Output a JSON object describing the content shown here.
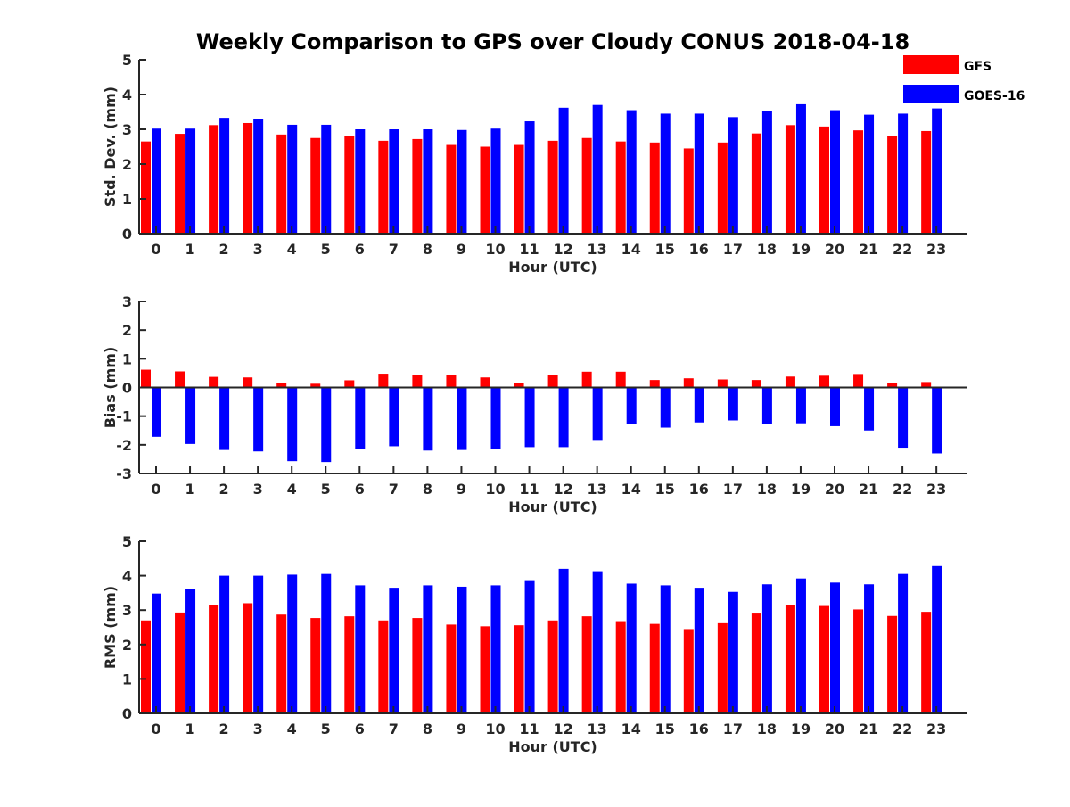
{
  "title": "Weekly Comparison to GPS over Cloudy CONUS 2018-04-18",
  "legend": [
    {
      "name": "GFS",
      "color": "#ff0000"
    },
    {
      "name": "GOES-16",
      "color": "#0000ff"
    }
  ],
  "chart_data": [
    {
      "type": "bar",
      "xlabel": "Hour (UTC)",
      "ylabel": "Std. Dev. (mm)",
      "ylim": [
        0,
        5
      ],
      "yticks": [
        0,
        1,
        2,
        3,
        4,
        5
      ],
      "categories": [
        "0",
        "1",
        "2",
        "3",
        "4",
        "5",
        "6",
        "7",
        "8",
        "9",
        "10",
        "11",
        "12",
        "13",
        "14",
        "15",
        "16",
        "17",
        "18",
        "19",
        "20",
        "21",
        "22",
        "23"
      ],
      "series": [
        {
          "name": "GFS",
          "color": "#ff0000",
          "values": [
            2.65,
            2.87,
            3.12,
            3.18,
            2.85,
            2.75,
            2.8,
            2.67,
            2.72,
            2.55,
            2.5,
            2.55,
            2.67,
            2.75,
            2.65,
            2.62,
            2.45,
            2.62,
            2.88,
            3.12,
            3.08,
            2.97,
            2.82,
            2.95
          ]
        },
        {
          "name": "GOES-16",
          "color": "#0000ff",
          "values": [
            3.02,
            3.02,
            3.33,
            3.3,
            3.13,
            3.13,
            3.0,
            3.0,
            3.0,
            2.98,
            3.02,
            3.23,
            3.62,
            3.7,
            3.55,
            3.45,
            3.45,
            3.35,
            3.52,
            3.72,
            3.55,
            3.42,
            3.45,
            3.6
          ]
        }
      ]
    },
    {
      "type": "bar",
      "xlabel": "Hour (UTC)",
      "ylabel": "Bias (mm)",
      "ylim": [
        -3,
        3
      ],
      "yticks": [
        -3,
        -2,
        -1,
        0,
        1,
        2,
        3
      ],
      "categories": [
        "0",
        "1",
        "2",
        "3",
        "4",
        "5",
        "6",
        "7",
        "8",
        "9",
        "10",
        "11",
        "12",
        "13",
        "14",
        "15",
        "16",
        "17",
        "18",
        "19",
        "20",
        "21",
        "22",
        "23"
      ],
      "series": [
        {
          "name": "GFS",
          "color": "#ff0000",
          "values": [
            0.62,
            0.56,
            0.37,
            0.35,
            0.17,
            0.13,
            0.25,
            0.48,
            0.42,
            0.45,
            0.35,
            0.17,
            0.45,
            0.55,
            0.55,
            0.26,
            0.32,
            0.28,
            0.26,
            0.38,
            0.41,
            0.47,
            0.17,
            0.19
          ]
        },
        {
          "name": "GOES-16",
          "color": "#0000ff",
          "values": [
            -1.72,
            -1.97,
            -2.18,
            -2.23,
            -2.57,
            -2.6,
            -2.15,
            -2.05,
            -2.2,
            -2.18,
            -2.15,
            -2.08,
            -2.08,
            -1.83,
            -1.27,
            -1.4,
            -1.22,
            -1.15,
            -1.27,
            -1.25,
            -1.35,
            -1.5,
            -2.1,
            -2.3
          ]
        }
      ]
    },
    {
      "type": "bar",
      "xlabel": "Hour (UTC)",
      "ylabel": "RMS (mm)",
      "ylim": [
        0,
        5
      ],
      "yticks": [
        0,
        1,
        2,
        3,
        4,
        5
      ],
      "categories": [
        "0",
        "1",
        "2",
        "3",
        "4",
        "5",
        "6",
        "7",
        "8",
        "9",
        "10",
        "11",
        "12",
        "13",
        "14",
        "15",
        "16",
        "17",
        "18",
        "19",
        "20",
        "21",
        "22",
        "23"
      ],
      "series": [
        {
          "name": "GFS",
          "color": "#ff0000",
          "values": [
            2.7,
            2.93,
            3.15,
            3.2,
            2.87,
            2.77,
            2.82,
            2.7,
            2.77,
            2.58,
            2.53,
            2.56,
            2.7,
            2.82,
            2.68,
            2.6,
            2.45,
            2.62,
            2.9,
            3.15,
            3.12,
            3.02,
            2.83,
            2.95
          ]
        },
        {
          "name": "GOES-16",
          "color": "#0000ff",
          "values": [
            3.48,
            3.62,
            4.0,
            4.0,
            4.03,
            4.05,
            3.72,
            3.65,
            3.72,
            3.68,
            3.72,
            3.87,
            4.2,
            4.13,
            3.77,
            3.72,
            3.65,
            3.53,
            3.75,
            3.92,
            3.8,
            3.75,
            4.05,
            4.28
          ]
        }
      ]
    }
  ]
}
